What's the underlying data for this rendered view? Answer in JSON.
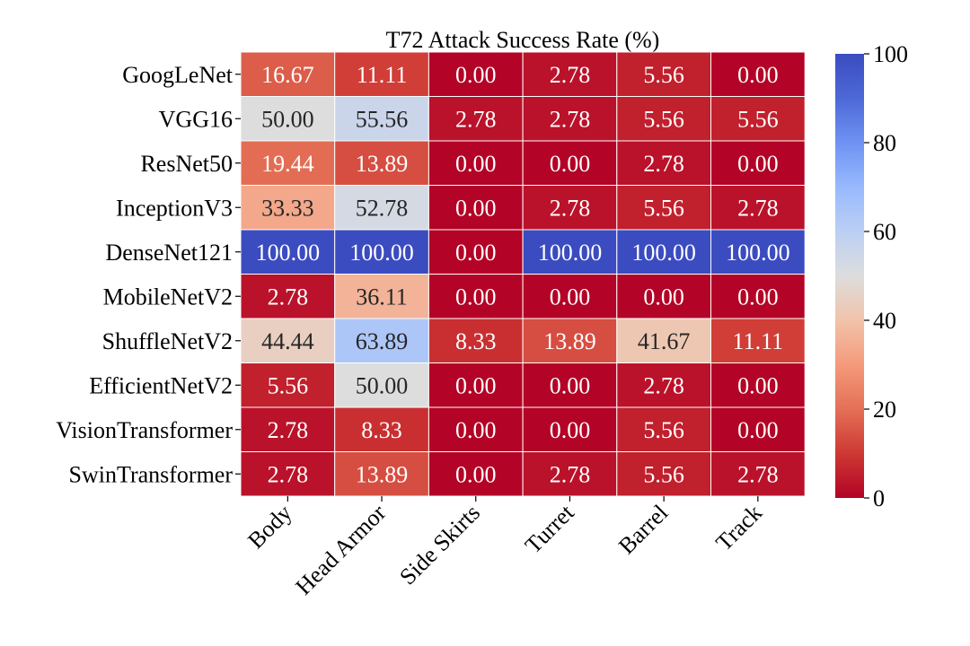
{
  "chart_data": {
    "type": "heatmap",
    "title": "T72 Attack Success Rate (%)",
    "rows": [
      "GoogLeNet",
      "VGG16",
      "ResNet50",
      "InceptionV3",
      "DenseNet121",
      "MobileNetV2",
      "ShuffleNetV2",
      "EfficientNetV2",
      "VisionTransformer",
      "SwinTransformer"
    ],
    "columns": [
      "Body",
      "Head Armor",
      "Side Skirts",
      "Turret",
      "Barrel",
      "Track"
    ],
    "values": [
      [
        16.67,
        11.11,
        0.0,
        2.78,
        5.56,
        0.0
      ],
      [
        50.0,
        55.56,
        2.78,
        2.78,
        5.56,
        5.56
      ],
      [
        19.44,
        13.89,
        0.0,
        0.0,
        2.78,
        0.0
      ],
      [
        33.33,
        52.78,
        0.0,
        2.78,
        5.56,
        2.78
      ],
      [
        100.0,
        100.0,
        0.0,
        100.0,
        100.0,
        100.0
      ],
      [
        2.78,
        36.11,
        0.0,
        0.0,
        0.0,
        0.0
      ],
      [
        44.44,
        63.89,
        8.33,
        13.89,
        41.67,
        11.11
      ],
      [
        5.56,
        50.0,
        0.0,
        0.0,
        2.78,
        0.0
      ],
      [
        2.78,
        8.33,
        0.0,
        0.0,
        5.56,
        0.0
      ],
      [
        2.78,
        13.89,
        0.0,
        2.78,
        5.56,
        2.78
      ]
    ],
    "colorbar": {
      "min": 0,
      "max": 100,
      "ticks": [
        0,
        20,
        40,
        60,
        80,
        100
      ]
    },
    "colormap": "coolwarm_r",
    "xlabel": "",
    "ylabel": ""
  }
}
